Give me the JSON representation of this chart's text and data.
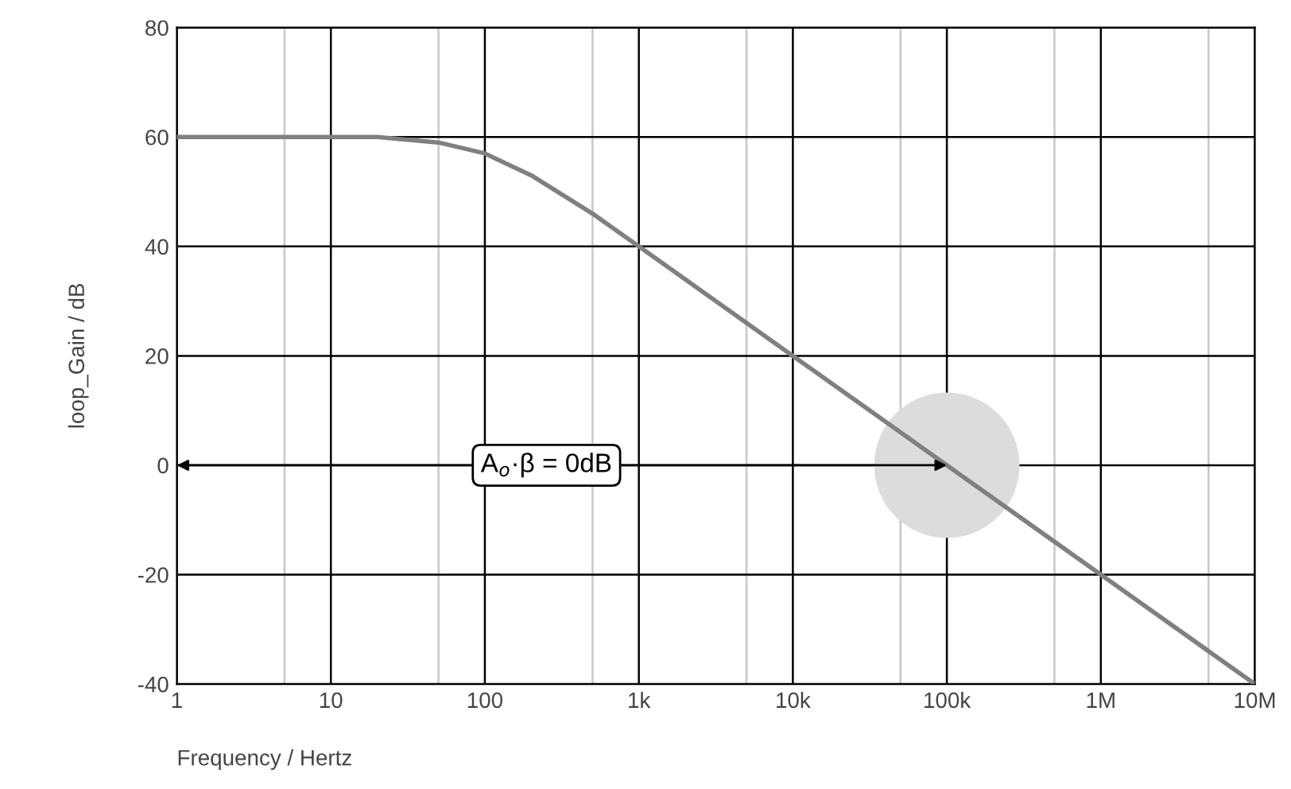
{
  "chart_data": {
    "type": "line",
    "xlabel": "Frequency / Hertz",
    "ylabel": "loop_Gain / dB",
    "x": [
      1,
      10,
      20,
      50,
      100,
      200,
      500,
      1000,
      10000,
      100000,
      1000000,
      10000000
    ],
    "series": [
      {
        "color": "#808080",
        "values": [
          60,
          60,
          60,
          59,
          57,
          53,
          46,
          40,
          20,
          0,
          -20,
          -40
        ]
      }
    ],
    "log": "x",
    "xlim": [
      1,
      10000000
    ],
    "ylim": [
      -40,
      80
    ],
    "xticks": [
      1,
      {
        "value": 5,
        "label": null
      },
      10,
      {
        "value": 50,
        "label": null
      },
      100,
      {
        "value": 500,
        "label": null
      },
      {
        "value": 1000,
        "label": "1k"
      },
      {
        "value": 5000,
        "label": null
      },
      {
        "value": 10000,
        "label": "10k"
      },
      {
        "value": 50000,
        "label": null
      },
      {
        "value": 100000,
        "label": "100k"
      },
      {
        "value": 500000,
        "label": null
      },
      {
        "value": 1000000,
        "label": "1M"
      },
      {
        "value": 5000000,
        "label": null
      },
      {
        "value": 10000000,
        "label": "10M"
      }
    ],
    "yticks": [
      -40,
      -20,
      0,
      20,
      40,
      60,
      80
    ],
    "grid": true,
    "marker": "none",
    "line_style": "solid",
    "annotations": [
      {
        "text": "A$_{o}$·β = 0dB",
        "x": 100000,
        "y": 0
      }
    ]
  }
}
